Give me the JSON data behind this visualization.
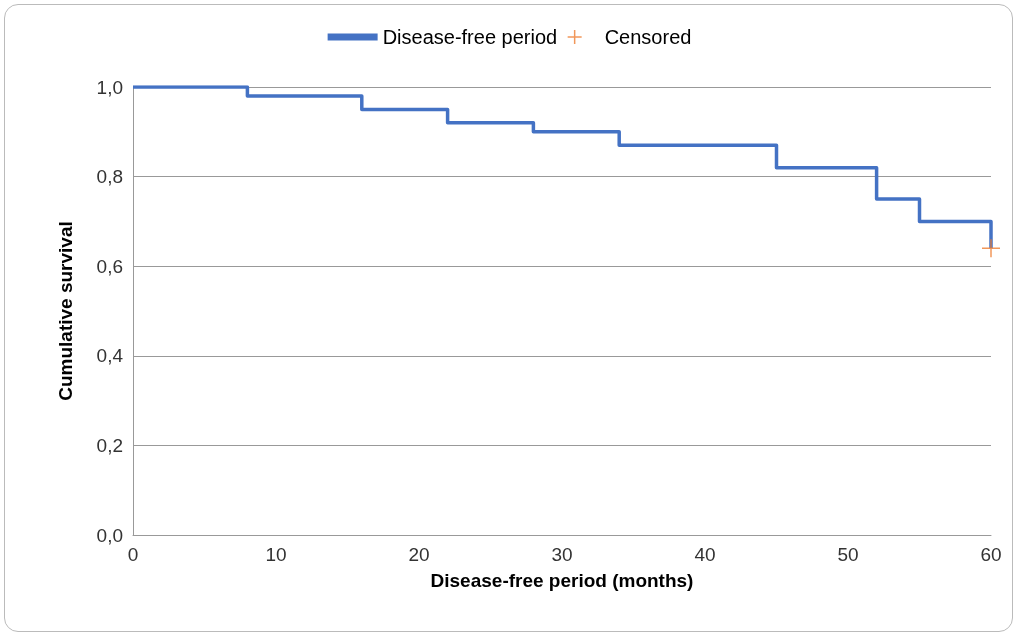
{
  "chart_data": {
    "type": "step",
    "xlabel": "Disease-free period (months)",
    "ylabel": "Cumulative survival",
    "xlim": [
      0,
      60
    ],
    "xticks": [
      0,
      10,
      20,
      30,
      40,
      50,
      60
    ],
    "ylim": [
      0,
      1
    ],
    "yticks": [
      {
        "value": 0,
        "label": "0,0"
      },
      {
        "value": 0.2,
        "label": "0,2"
      },
      {
        "value": 0.4,
        "label": "0,4"
      },
      {
        "value": 0.6,
        "label": "0,6"
      },
      {
        "value": 0.8,
        "label": "0,8"
      },
      {
        "value": 1,
        "label": "1,0"
      }
    ],
    "grid": "y",
    "legend": "top",
    "series": [
      {
        "name": "Disease-free period",
        "color": "#4472c4",
        "marker": "none",
        "x": [
          0,
          8,
          16,
          22,
          28,
          34,
          45,
          52,
          55,
          60
        ],
        "values": [
          1,
          0.98,
          0.95,
          0.92,
          0.9,
          0.87,
          0.82,
          0.75,
          0.7,
          0.64
        ]
      },
      {
        "name": "Censored",
        "type": "scatter",
        "color": "#ed7d31",
        "marker": "cross",
        "x": [
          60
        ],
        "values": [
          0.64
        ]
      }
    ]
  }
}
